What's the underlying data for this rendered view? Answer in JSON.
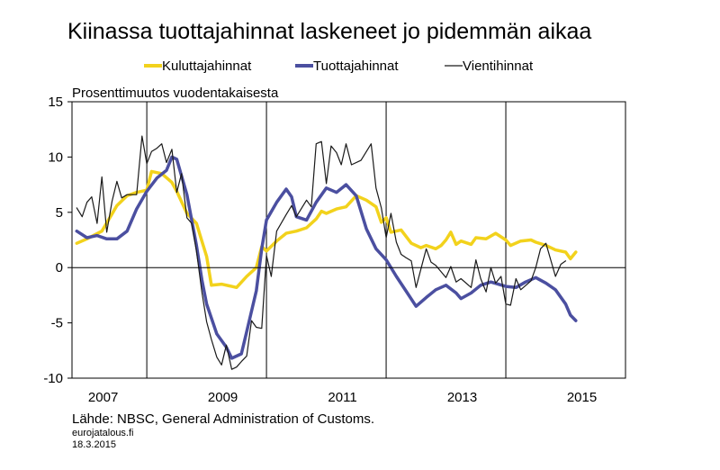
{
  "chart_data": {
    "type": "line",
    "title": "Kiinassa tuottajahinnat laskeneet jo pidemmän aikaa",
    "ylabel": "Prosenttimuutos vuodentakaisesta",
    "xlabel": "",
    "ylim": [
      -10,
      15
    ],
    "xlim": [
      2006.75,
      2016.0
    ],
    "yticks": [
      -10,
      -5,
      0,
      5,
      10,
      15
    ],
    "ytick_labels": [
      "-10",
      "-5",
      "0",
      "5",
      "10",
      "15"
    ],
    "xticks": [
      2007,
      2009,
      2011,
      2013,
      2015
    ],
    "xtick_labels": [
      "2007",
      "2009",
      "2011",
      "2013",
      "2015"
    ],
    "grid": "vertical lines only",
    "legend_position": "top",
    "series": [
      {
        "name": "Kuluttajahinnat",
        "color": "#f2d21c",
        "points": [
          [
            2006.83,
            2.2
          ],
          [
            2007.0,
            2.6
          ],
          [
            2007.25,
            3.3
          ],
          [
            2007.5,
            5.6
          ],
          [
            2007.67,
            6.5
          ],
          [
            2007.83,
            6.8
          ],
          [
            2008.0,
            7.0
          ],
          [
            2008.08,
            8.7
          ],
          [
            2008.25,
            8.5
          ],
          [
            2008.42,
            7.7
          ],
          [
            2008.5,
            6.9
          ],
          [
            2008.67,
            4.9
          ],
          [
            2008.83,
            4.0
          ],
          [
            2008.92,
            2.4
          ],
          [
            2009.0,
            1.0
          ],
          [
            2009.08,
            -1.6
          ],
          [
            2009.25,
            -1.5
          ],
          [
            2009.42,
            -1.7
          ],
          [
            2009.5,
            -1.8
          ],
          [
            2009.67,
            -0.8
          ],
          [
            2009.83,
            0.0
          ],
          [
            2009.92,
            1.9
          ],
          [
            2010.0,
            1.5
          ],
          [
            2010.17,
            2.4
          ],
          [
            2010.33,
            3.1
          ],
          [
            2010.5,
            3.3
          ],
          [
            2010.67,
            3.6
          ],
          [
            2010.83,
            4.4
          ],
          [
            2010.92,
            5.1
          ],
          [
            2011.0,
            4.9
          ],
          [
            2011.17,
            5.3
          ],
          [
            2011.33,
            5.5
          ],
          [
            2011.5,
            6.5
          ],
          [
            2011.67,
            6.1
          ],
          [
            2011.83,
            5.5
          ],
          [
            2011.92,
            4.1
          ],
          [
            2012.0,
            4.5
          ],
          [
            2012.08,
            3.2
          ],
          [
            2012.25,
            3.4
          ],
          [
            2012.42,
            2.2
          ],
          [
            2012.58,
            1.8
          ],
          [
            2012.67,
            2.0
          ],
          [
            2012.83,
            1.7
          ],
          [
            2012.92,
            2.0
          ],
          [
            2013.0,
            2.5
          ],
          [
            2013.08,
            3.2
          ],
          [
            2013.17,
            2.1
          ],
          [
            2013.25,
            2.4
          ],
          [
            2013.42,
            2.1
          ],
          [
            2013.5,
            2.7
          ],
          [
            2013.67,
            2.6
          ],
          [
            2013.83,
            3.1
          ],
          [
            2014.0,
            2.5
          ],
          [
            2014.08,
            2.0
          ],
          [
            2014.25,
            2.4
          ],
          [
            2014.42,
            2.5
          ],
          [
            2014.5,
            2.3
          ],
          [
            2014.67,
            2.0
          ],
          [
            2014.83,
            1.6
          ],
          [
            2015.0,
            1.4
          ],
          [
            2015.08,
            0.8
          ],
          [
            2015.17,
            1.4
          ]
        ]
      },
      {
        "name": "Tuottajahinnat",
        "color": "#4b4fa0",
        "points": [
          [
            2006.83,
            3.3
          ],
          [
            2007.0,
            2.7
          ],
          [
            2007.17,
            2.9
          ],
          [
            2007.33,
            2.6
          ],
          [
            2007.5,
            2.6
          ],
          [
            2007.67,
            3.3
          ],
          [
            2007.83,
            5.3
          ],
          [
            2008.0,
            6.9
          ],
          [
            2008.17,
            8.1
          ],
          [
            2008.33,
            8.8
          ],
          [
            2008.42,
            10.0
          ],
          [
            2008.5,
            9.8
          ],
          [
            2008.67,
            6.6
          ],
          [
            2008.83,
            2.0
          ],
          [
            2008.92,
            -1.1
          ],
          [
            2009.0,
            -3.3
          ],
          [
            2009.17,
            -6.0
          ],
          [
            2009.33,
            -7.2
          ],
          [
            2009.42,
            -8.2
          ],
          [
            2009.58,
            -7.8
          ],
          [
            2009.67,
            -5.8
          ],
          [
            2009.83,
            -2.1
          ],
          [
            2009.92,
            1.7
          ],
          [
            2010.0,
            4.3
          ],
          [
            2010.17,
            5.9
          ],
          [
            2010.33,
            7.1
          ],
          [
            2010.42,
            6.4
          ],
          [
            2010.5,
            4.6
          ],
          [
            2010.67,
            4.3
          ],
          [
            2010.83,
            5.9
          ],
          [
            2011.0,
            7.2
          ],
          [
            2011.17,
            6.8
          ],
          [
            2011.33,
            7.5
          ],
          [
            2011.5,
            6.5
          ],
          [
            2011.67,
            3.5
          ],
          [
            2011.83,
            1.7
          ],
          [
            2012.0,
            0.7
          ],
          [
            2012.17,
            -0.8
          ],
          [
            2012.33,
            -2.1
          ],
          [
            2012.5,
            -3.5
          ],
          [
            2012.67,
            -2.7
          ],
          [
            2012.83,
            -2.0
          ],
          [
            2013.0,
            -1.6
          ],
          [
            2013.17,
            -2.3
          ],
          [
            2013.25,
            -2.8
          ],
          [
            2013.42,
            -2.3
          ],
          [
            2013.58,
            -1.6
          ],
          [
            2013.75,
            -1.3
          ],
          [
            2014.0,
            -1.7
          ],
          [
            2014.17,
            -1.8
          ],
          [
            2014.33,
            -1.3
          ],
          [
            2014.5,
            -0.9
          ],
          [
            2014.67,
            -1.4
          ],
          [
            2014.83,
            -2.0
          ],
          [
            2015.0,
            -3.3
          ],
          [
            2015.08,
            -4.3
          ],
          [
            2015.17,
            -4.8
          ]
        ]
      },
      {
        "name": "Vientihinnat",
        "color": "#1a1a1a",
        "points": [
          [
            2006.83,
            5.4
          ],
          [
            2006.92,
            4.6
          ],
          [
            2007.0,
            5.9
          ],
          [
            2007.08,
            6.4
          ],
          [
            2007.17,
            4.0
          ],
          [
            2007.25,
            8.2
          ],
          [
            2007.33,
            3.2
          ],
          [
            2007.42,
            6.0
          ],
          [
            2007.5,
            7.8
          ],
          [
            2007.58,
            6.3
          ],
          [
            2007.67,
            6.6
          ],
          [
            2007.83,
            6.6
          ],
          [
            2007.92,
            11.9
          ],
          [
            2008.0,
            9.4
          ],
          [
            2008.08,
            10.5
          ],
          [
            2008.17,
            10.8
          ],
          [
            2008.25,
            11.2
          ],
          [
            2008.33,
            9.5
          ],
          [
            2008.42,
            10.7
          ],
          [
            2008.5,
            6.8
          ],
          [
            2008.58,
            8.5
          ],
          [
            2008.67,
            4.5
          ],
          [
            2008.75,
            4.0
          ],
          [
            2008.83,
            1.5
          ],
          [
            2008.92,
            -2.2
          ],
          [
            2009.0,
            -4.9
          ],
          [
            2009.08,
            -6.5
          ],
          [
            2009.17,
            -8.1
          ],
          [
            2009.25,
            -8.8
          ],
          [
            2009.33,
            -7.0
          ],
          [
            2009.42,
            -9.2
          ],
          [
            2009.5,
            -9.0
          ],
          [
            2009.58,
            -8.5
          ],
          [
            2009.67,
            -8.0
          ],
          [
            2009.75,
            -4.8
          ],
          [
            2009.83,
            -5.4
          ],
          [
            2009.92,
            -5.5
          ],
          [
            2010.0,
            1.1
          ],
          [
            2010.08,
            -0.8
          ],
          [
            2010.17,
            3.3
          ],
          [
            2010.33,
            4.8
          ],
          [
            2010.42,
            5.6
          ],
          [
            2010.5,
            4.6
          ],
          [
            2010.67,
            6.1
          ],
          [
            2010.75,
            5.5
          ],
          [
            2010.83,
            11.2
          ],
          [
            2010.92,
            11.4
          ],
          [
            2011.0,
            7.6
          ],
          [
            2011.08,
            11.0
          ],
          [
            2011.17,
            10.4
          ],
          [
            2011.25,
            9.3
          ],
          [
            2011.33,
            11.2
          ],
          [
            2011.42,
            9.3
          ],
          [
            2011.58,
            9.7
          ],
          [
            2011.75,
            11.2
          ],
          [
            2011.83,
            7.2
          ],
          [
            2011.92,
            5.4
          ],
          [
            2012.0,
            2.7
          ],
          [
            2012.08,
            4.9
          ],
          [
            2012.17,
            2.3
          ],
          [
            2012.25,
            1.2
          ],
          [
            2012.33,
            0.9
          ],
          [
            2012.42,
            0.6
          ],
          [
            2012.5,
            -1.8
          ],
          [
            2012.67,
            1.7
          ],
          [
            2012.75,
            0.5
          ],
          [
            2012.83,
            0.2
          ],
          [
            2013.0,
            -0.9
          ],
          [
            2013.08,
            0.1
          ],
          [
            2013.17,
            -1.3
          ],
          [
            2013.25,
            -1.0
          ],
          [
            2013.42,
            -1.8
          ],
          [
            2013.5,
            0.7
          ],
          [
            2013.58,
            -1.0
          ],
          [
            2013.67,
            -2.2
          ],
          [
            2013.75,
            0.0
          ],
          [
            2013.83,
            -1.4
          ],
          [
            2013.92,
            -0.8
          ],
          [
            2014.0,
            -3.3
          ],
          [
            2014.08,
            -3.4
          ],
          [
            2014.17,
            -1.0
          ],
          [
            2014.25,
            -2.0
          ],
          [
            2014.42,
            -1.2
          ],
          [
            2014.5,
            0.0
          ],
          [
            2014.58,
            1.7
          ],
          [
            2014.67,
            2.2
          ],
          [
            2014.83,
            -0.8
          ],
          [
            2014.92,
            0.3
          ],
          [
            2015.0,
            0.6
          ]
        ]
      }
    ]
  },
  "footer": {
    "source": "Lähde: NBSC, General Administration  of Customs.",
    "site": "eurojatalous.fi",
    "date": "18.3.2015"
  }
}
